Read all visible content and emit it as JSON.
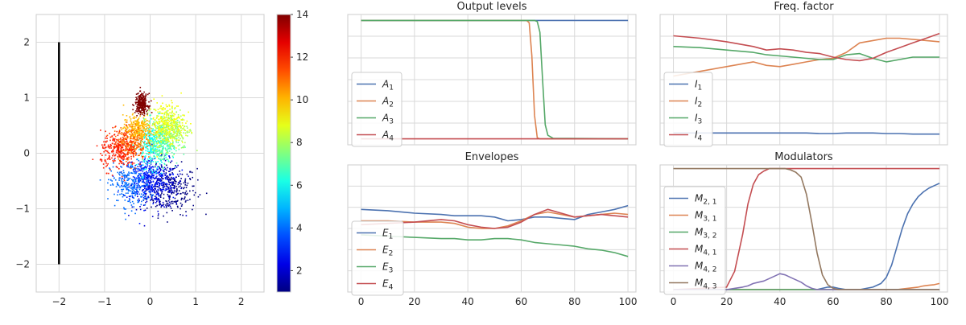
{
  "chart_data": [
    {
      "type": "scatter",
      "title": "",
      "xlim": [
        -2.5,
        2.5
      ],
      "ylim": [
        -2.5,
        2.5
      ],
      "xticks": [
        "−2",
        "−1",
        "0",
        "1",
        "2"
      ],
      "yticks": [
        "−2",
        "−1",
        "0",
        "1",
        "2"
      ],
      "grid": true,
      "vertical_line": {
        "x": -2,
        "y_from": -2,
        "y_to": 2,
        "color": "#000000"
      },
      "colorbar": {
        "cmap": "jet",
        "range": [
          1,
          14
        ],
        "ticks": [
          "2",
          "4",
          "6",
          "8",
          "10",
          "12",
          "14"
        ]
      },
      "clusters": [
        {
          "value": 1,
          "center": [
            0.45,
            -0.65
          ],
          "spread": [
            0.28,
            0.22
          ]
        },
        {
          "value": 2,
          "center": [
            0.15,
            -0.55
          ],
          "spread": [
            0.28,
            0.22
          ]
        },
        {
          "value": 3,
          "center": [
            -0.1,
            -0.45
          ],
          "spread": [
            0.25,
            0.2
          ]
        },
        {
          "value": 4,
          "center": [
            -0.45,
            -0.55
          ],
          "spread": [
            0.22,
            0.2
          ]
        },
        {
          "value": 6,
          "center": [
            0.05,
            0.15
          ],
          "spread": [
            0.17,
            0.2
          ]
        },
        {
          "value": 7,
          "center": [
            0.25,
            0.2
          ],
          "spread": [
            0.17,
            0.2
          ]
        },
        {
          "value": 8,
          "center": [
            0.45,
            0.45
          ],
          "spread": [
            0.2,
            0.18
          ]
        },
        {
          "value": 9,
          "center": [
            0.35,
            0.55
          ],
          "spread": [
            0.2,
            0.2
          ]
        },
        {
          "value": 10,
          "center": [
            -0.3,
            0.45
          ],
          "spread": [
            0.15,
            0.12
          ]
        },
        {
          "value": 11,
          "center": [
            -0.45,
            0.2
          ],
          "spread": [
            0.17,
            0.15
          ]
        },
        {
          "value": 12,
          "center": [
            -0.7,
            0.05
          ],
          "spread": [
            0.2,
            0.17
          ]
        },
        {
          "value": 14,
          "center": [
            -0.2,
            0.9
          ],
          "spread": [
            0.07,
            0.09
          ]
        }
      ]
    },
    {
      "type": "line",
      "title": "Output levels",
      "xlim": [
        -5,
        103
      ],
      "ylim": [
        -0.05,
        1.05
      ],
      "xticks": [
        0,
        20,
        40,
        60,
        80,
        100
      ],
      "x": [
        0,
        62,
        63,
        64,
        65,
        66,
        67,
        68,
        69,
        70,
        72,
        100
      ],
      "series": [
        {
          "name": "A1",
          "color": "#4c72b0",
          "values": [
            1,
            1,
            1,
            1,
            1,
            1,
            1,
            1,
            1,
            1,
            1,
            1
          ]
        },
        {
          "name": "A2",
          "color": "#dd8452",
          "values": [
            1,
            1,
            0.98,
            0.7,
            0.2,
            0.01,
            0,
            0,
            0,
            0,
            0,
            0
          ]
        },
        {
          "name": "A3",
          "color": "#55a868",
          "values": [
            1,
            1,
            1,
            1,
            1,
            0.99,
            0.9,
            0.5,
            0.12,
            0.03,
            0.005,
            0
          ]
        },
        {
          "name": "A4",
          "color": "#c44e52",
          "values": [
            0,
            0,
            0,
            0,
            0,
            0,
            0,
            0,
            0,
            0,
            0,
            0
          ]
        }
      ],
      "legend": "left",
      "legend_labels": [
        "A",
        "A",
        "A",
        "A"
      ],
      "legend_subscripts": [
        "1",
        "2",
        "3",
        "4"
      ]
    },
    {
      "type": "line",
      "title": "Freq. factor",
      "xlim": [
        -5,
        103
      ],
      "ylim": [
        0,
        1.1
      ],
      "xticks": [
        0,
        20,
        40,
        60,
        80,
        100
      ],
      "x": [
        0,
        10,
        20,
        30,
        35,
        40,
        45,
        50,
        55,
        60,
        65,
        70,
        75,
        80,
        85,
        90,
        95,
        100
      ],
      "series": [
        {
          "name": "I1",
          "color": "#4c72b0",
          "values": [
            0.1,
            0.1,
            0.1,
            0.1,
            0.1,
            0.1,
            0.1,
            0.1,
            0.095,
            0.095,
            0.1,
            0.1,
            0.1,
            0.095,
            0.095,
            0.09,
            0.09,
            0.09
          ]
        },
        {
          "name": "I2",
          "color": "#dd8452",
          "values": [
            0.58,
            0.62,
            0.66,
            0.7,
            0.67,
            0.66,
            0.68,
            0.7,
            0.72,
            0.73,
            0.78,
            0.86,
            0.88,
            0.9,
            0.9,
            0.89,
            0.88,
            0.87
          ]
        },
        {
          "name": "I3",
          "color": "#55a868",
          "values": [
            0.83,
            0.82,
            0.8,
            0.78,
            0.76,
            0.75,
            0.74,
            0.73,
            0.72,
            0.72,
            0.76,
            0.77,
            0.73,
            0.7,
            0.72,
            0.74,
            0.74,
            0.74
          ]
        },
        {
          "name": "I4",
          "color": "#c44e52",
          "values": [
            0.92,
            0.9,
            0.87,
            0.83,
            0.8,
            0.81,
            0.8,
            0.78,
            0.77,
            0.74,
            0.72,
            0.71,
            0.73,
            0.78,
            0.82,
            0.86,
            0.9,
            0.94
          ]
        }
      ],
      "legend": "left",
      "legend_labels": [
        "I",
        "I",
        "I",
        "I"
      ],
      "legend_subscripts": [
        "1",
        "2",
        "3",
        "4"
      ]
    },
    {
      "type": "line",
      "title": "Envelopes",
      "xlim": [
        -5,
        103
      ],
      "ylim": [
        0,
        1
      ],
      "xticks": [
        "0",
        "20",
        "40",
        "60",
        "80",
        "100"
      ],
      "x": [
        0,
        10,
        20,
        30,
        35,
        40,
        45,
        50,
        55,
        60,
        65,
        70,
        75,
        80,
        85,
        90,
        95,
        100
      ],
      "series": [
        {
          "name": "E1",
          "color": "#4c72b0",
          "values": [
            0.65,
            0.64,
            0.62,
            0.61,
            0.6,
            0.6,
            0.6,
            0.59,
            0.56,
            0.57,
            0.59,
            0.59,
            0.58,
            0.57,
            0.61,
            0.63,
            0.65,
            0.68
          ]
        },
        {
          "name": "E2",
          "color": "#dd8452",
          "values": [
            0.56,
            0.56,
            0.55,
            0.55,
            0.54,
            0.51,
            0.5,
            0.5,
            0.52,
            0.56,
            0.61,
            0.63,
            0.61,
            0.59,
            0.6,
            0.61,
            0.62,
            0.61
          ]
        },
        {
          "name": "E3",
          "color": "#55a868",
          "values": [
            0.45,
            0.44,
            0.43,
            0.42,
            0.42,
            0.41,
            0.41,
            0.42,
            0.42,
            0.41,
            0.39,
            0.38,
            0.37,
            0.36,
            0.34,
            0.33,
            0.31,
            0.28
          ]
        },
        {
          "name": "E4",
          "color": "#c44e52",
          "values": [
            0.53,
            0.54,
            0.55,
            0.57,
            0.56,
            0.53,
            0.51,
            0.5,
            0.51,
            0.55,
            0.61,
            0.65,
            0.62,
            0.59,
            0.6,
            0.61,
            0.6,
            0.59
          ]
        }
      ],
      "legend": "left",
      "legend_labels": [
        "E",
        "E",
        "E",
        "E"
      ],
      "legend_subscripts": [
        "1",
        "2",
        "3",
        "4"
      ]
    },
    {
      "type": "line",
      "title": "Modulators",
      "xlim": [
        -5,
        103
      ],
      "ylim": [
        -0.02,
        1.02
      ],
      "xticks": [
        "0",
        "20",
        "40",
        "60",
        "80",
        "100"
      ],
      "x": [
        0,
        20,
        23,
        26,
        28,
        30,
        32,
        34,
        36,
        38,
        40,
        42,
        44,
        46,
        48,
        50,
        52,
        54,
        56,
        58,
        60,
        62,
        65,
        70,
        75,
        78,
        80,
        82,
        84,
        86,
        88,
        90,
        92,
        94,
        96,
        98,
        100
      ],
      "series": [
        {
          "name": "M2,1",
          "color": "#4c72b0",
          "values": [
            0,
            0,
            0,
            0,
            0,
            0,
            0,
            0,
            0,
            0,
            0,
            0,
            0,
            0,
            0,
            0,
            0,
            0,
            0.01,
            0.02,
            0.02,
            0.01,
            0,
            0,
            0.02,
            0.05,
            0.1,
            0.2,
            0.35,
            0.5,
            0.62,
            0.7,
            0.76,
            0.8,
            0.83,
            0.85,
            0.87
          ]
        },
        {
          "name": "M3,1",
          "color": "#dd8452",
          "values": [
            0,
            0,
            0,
            0,
            0,
            0,
            0,
            0,
            0,
            0,
            0,
            0,
            0,
            0,
            0,
            0,
            0,
            0,
            0,
            0,
            0,
            0,
            0,
            0,
            0,
            0,
            0,
            0,
            0,
            0.005,
            0.01,
            0.015,
            0.02,
            0.03,
            0.035,
            0.04,
            0.05
          ]
        },
        {
          "name": "M3,2",
          "color": "#55a868",
          "values": [
            0,
            0,
            0,
            0,
            0,
            0,
            0,
            0,
            0,
            0,
            0,
            0,
            0,
            0,
            0,
            0,
            0,
            0,
            0,
            0,
            0,
            0,
            0,
            0,
            0,
            0,
            0,
            0,
            0,
            0,
            0,
            0,
            0,
            0,
            0,
            0,
            0
          ]
        },
        {
          "name": "M4,1",
          "color": "#c44e52",
          "values": [
            0,
            0.02,
            0.15,
            0.45,
            0.7,
            0.86,
            0.94,
            0.97,
            0.99,
            0.99,
            0.99,
            0.99,
            0.99,
            0.99,
            0.99,
            0.99,
            0.99,
            0.99,
            0.99,
            0.99,
            0.99,
            0.99,
            0.99,
            0.99,
            0.99,
            0.99,
            0.99,
            0.99,
            0.99,
            0.99,
            0.99,
            0.99,
            0.99,
            0.99,
            0.99,
            0.99,
            0.99
          ]
        },
        {
          "name": "M4,2",
          "color": "#8172b3",
          "values": [
            0,
            0,
            0.01,
            0.02,
            0.03,
            0.05,
            0.06,
            0.07,
            0.09,
            0.11,
            0.13,
            0.12,
            0.1,
            0.08,
            0.06,
            0.03,
            0.01,
            0,
            0,
            0,
            0,
            0,
            0,
            0,
            0,
            0,
            0,
            0,
            0,
            0,
            0,
            0,
            0,
            0,
            0,
            0,
            0
          ]
        },
        {
          "name": "M4,3",
          "color": "#937860",
          "values": [
            0.99,
            0.99,
            0.99,
            0.99,
            0.99,
            0.99,
            0.99,
            0.99,
            0.99,
            0.99,
            0.99,
            0.99,
            0.98,
            0.96,
            0.92,
            0.78,
            0.55,
            0.3,
            0.12,
            0.04,
            0.01,
            0,
            0,
            0,
            0,
            0,
            0,
            0,
            0,
            0,
            0,
            0,
            0,
            0,
            0,
            0,
            0
          ]
        }
      ],
      "legend": "left",
      "legend_labels": [
        "M",
        "M",
        "M",
        "M",
        "M",
        "M"
      ],
      "legend_subscripts": [
        "2, 1",
        "3, 1",
        "3, 2",
        "4, 1",
        "4, 2",
        "4, 3"
      ]
    }
  ]
}
